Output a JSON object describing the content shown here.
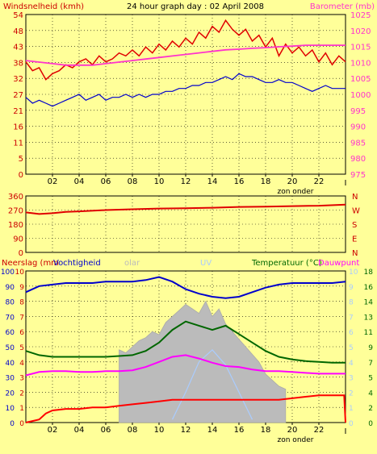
{
  "title": "24 hour graph day : 02 April 2008",
  "colors": {
    "background": "#FFFF99",
    "wind": "#E00000",
    "barometer": "#FF33CC",
    "temperature": "#006600",
    "humidity": "#0000CC",
    "rain": "#FF0000",
    "solar": "#BBBBBB",
    "uv": "#AACCFF",
    "dewpoint": "#FF00FF"
  },
  "chart_data": [
    {
      "type": "line",
      "panel": "wind-barometer",
      "left_label": "Windsnelheid (kmh)",
      "right_label": "Barometer (mb)",
      "x_ticks": [
        "02",
        "04",
        "06",
        "08",
        "10",
        "12",
        "14",
        "16",
        "18",
        "20",
        "22"
      ],
      "x_note": "zon onder",
      "x_end_mark": "I",
      "y_left_ticks": [
        0,
        5,
        11,
        16,
        21,
        27,
        32,
        38,
        43,
        48,
        54
      ],
      "y_left_range": [
        0,
        54
      ],
      "y_right_ticks": [
        975,
        980,
        985,
        990,
        995,
        1000,
        1005,
        1010,
        1015,
        1020,
        1025
      ],
      "y_right_range": [
        975,
        1027
      ],
      "series": [
        {
          "axis": "left",
          "x": [
            0,
            0.5,
            1,
            1.5,
            2,
            2.5,
            3,
            3.5,
            4,
            4.5,
            5,
            5.5,
            6,
            6.5,
            7,
            7.5,
            8,
            8.5,
            9,
            9.5,
            10,
            10.5,
            11,
            11.5,
            12,
            12.5,
            13,
            13.5,
            14,
            14.5,
            15,
            15.5,
            16,
            16.5,
            17,
            17.5,
            18,
            18.5,
            19,
            19.5,
            20,
            20.5,
            21,
            21.5,
            22,
            22.5,
            23,
            23.5,
            24
          ],
          "y": [
            38,
            35,
            36,
            32,
            34,
            35,
            37,
            36,
            38,
            39,
            37,
            40,
            38,
            39,
            41,
            40,
            42,
            40,
            43,
            41,
            44,
            42,
            45,
            43,
            46,
            44,
            48,
            46,
            50,
            48,
            52,
            49,
            47,
            49,
            45,
            47,
            43,
            46,
            40,
            44,
            41,
            43,
            40,
            42,
            38,
            41,
            37,
            40,
            38
          ]
        },
        {
          "axis": "left",
          "x": [
            0,
            0.5,
            1,
            1.5,
            2,
            2.5,
            3,
            3.5,
            4,
            4.5,
            5,
            5.5,
            6,
            6.5,
            7,
            7.5,
            8,
            8.5,
            9,
            9.5,
            10,
            10.5,
            11,
            11.5,
            12,
            12.5,
            13,
            13.5,
            14,
            14.5,
            15,
            15.5,
            16,
            16.5,
            17,
            17.5,
            18,
            18.5,
            19,
            19.5,
            20,
            20.5,
            21,
            21.5,
            22,
            22.5,
            23,
            23.5,
            24
          ],
          "y": [
            26,
            24,
            25,
            24,
            23,
            24,
            25,
            26,
            27,
            25,
            26,
            27,
            25,
            26,
            26,
            27,
            26,
            27,
            26,
            27,
            27,
            28,
            28,
            29,
            29,
            30,
            30,
            31,
            31,
            32,
            33,
            32,
            34,
            33,
            33,
            32,
            31,
            31,
            32,
            31,
            31,
            30,
            29,
            28,
            29,
            30,
            29,
            29,
            29
          ]
        },
        {
          "axis": "right",
          "x": [
            0,
            1,
            2,
            3,
            4,
            5,
            6,
            7,
            8,
            9,
            10,
            11,
            12,
            13,
            14,
            15,
            16,
            17,
            18,
            19,
            20,
            21,
            22,
            23,
            24
          ],
          "y": [
            1012,
            1011.5,
            1011,
            1010.5,
            1010.5,
            1010.5,
            1011,
            1011.5,
            1012,
            1012.5,
            1013,
            1013.5,
            1014,
            1014.5,
            1015,
            1015.5,
            1015.7,
            1016,
            1016.2,
            1016.5,
            1016.7,
            1017,
            1017,
            1017,
            1017
          ]
        }
      ]
    },
    {
      "type": "line",
      "panel": "wind-direction",
      "y_left_ticks": [
        0,
        90,
        180,
        270,
        360
      ],
      "y_left_range": [
        0,
        360
      ],
      "right_labels": [
        "N",
        "W",
        "S",
        "E",
        "N"
      ],
      "series": [
        {
          "axis": "left",
          "x": [
            0,
            1,
            2,
            3,
            4,
            6,
            8,
            10,
            12,
            14,
            16,
            18,
            20,
            22,
            24
          ],
          "y": [
            255,
            245,
            250,
            258,
            262,
            270,
            275,
            280,
            282,
            285,
            290,
            292,
            295,
            298,
            305
          ]
        }
      ]
    },
    {
      "type": "line",
      "panel": "rain-humidity-temp",
      "labels": {
        "rain": "Neerslag (mm",
        "humidity": "Vochtigheid",
        "solar": "olar",
        "uv": "UV",
        "temperature": "Temperatuur (°C)",
        "dewpoint": "Dauwpunt"
      },
      "x_ticks": [
        "02",
        "04",
        "06",
        "08",
        "10",
        "12",
        "14",
        "16",
        "18",
        "20",
        "22"
      ],
      "x_note": "zon onder",
      "x_end_mark": "I",
      "y_left_ticks": [
        0,
        10,
        20,
        30,
        40,
        50,
        60,
        70,
        80,
        90,
        100
      ],
      "y_left_range": [
        0,
        100
      ],
      "y_rain_ticks": [
        0,
        1,
        2,
        3,
        4,
        5,
        6,
        7,
        8,
        9,
        10
      ],
      "y_rain_range": [
        0,
        10
      ],
      "y_right_ticks": [
        0,
        2,
        4,
        5,
        7,
        9,
        11,
        13,
        14,
        16,
        18
      ],
      "y_right_range": [
        0,
        18
      ],
      "y_uv_ticks": [
        0,
        1,
        2,
        3,
        4,
        5,
        6,
        7,
        8,
        9,
        10
      ],
      "series": [
        {
          "axis": "left",
          "x": [
            0,
            1,
            2,
            3,
            4,
            5,
            6,
            7,
            8,
            9,
            10,
            11,
            12,
            13,
            14,
            15,
            16,
            17,
            18,
            19,
            20,
            21,
            22,
            23,
            24
          ],
          "y": [
            86,
            90,
            91,
            92,
            92,
            92,
            93,
            93,
            93,
            94,
            96,
            93,
            88,
            85,
            83,
            82,
            83,
            86,
            89,
            91,
            92,
            92,
            92,
            92,
            93
          ]
        },
        {
          "axis": "right",
          "x": [
            0,
            1,
            2,
            3,
            4,
            5,
            6,
            7,
            8,
            9,
            10,
            11,
            12,
            13,
            14,
            15,
            16,
            17,
            18,
            19,
            20,
            21,
            22,
            23,
            24
          ],
          "y": [
            8.5,
            8,
            7.8,
            7.8,
            7.8,
            7.8,
            7.8,
            7.9,
            8,
            8.5,
            9.5,
            11,
            12,
            11.5,
            11,
            11.5,
            10.5,
            9.5,
            8.5,
            7.8,
            7.5,
            7.3,
            7.2,
            7.1,
            7.1
          ]
        },
        {
          "axis": "right",
          "x": [
            0,
            1,
            2,
            3,
            4,
            5,
            6,
            7,
            8,
            9,
            10,
            11,
            12,
            13,
            14,
            15,
            16,
            17,
            18,
            19,
            20,
            21,
            22,
            23,
            24
          ],
          "y": [
            5.6,
            6,
            6.1,
            6.1,
            6,
            6,
            6.1,
            6.1,
            6.2,
            6.6,
            7.2,
            7.8,
            8,
            7.6,
            7.1,
            6.7,
            6.6,
            6.3,
            6.1,
            6.1,
            6,
            5.9,
            5.8,
            5.8,
            5.8
          ]
        },
        {
          "axis": "left",
          "x": [
            0,
            0.5,
            1,
            1.5,
            2,
            3,
            4,
            5,
            6,
            7,
            8,
            9,
            10,
            11,
            12,
            13,
            14,
            15,
            16,
            17,
            18,
            19,
            20,
            21,
            22,
            23,
            23.9,
            24
          ],
          "y": [
            0,
            1,
            2,
            6,
            8,
            9,
            9,
            10,
            10,
            11,
            12,
            13,
            14,
            15,
            15,
            15,
            15,
            15,
            15,
            15,
            15,
            15,
            16,
            17,
            18,
            18,
            18,
            0
          ]
        },
        {
          "axis": "left",
          "x": [
            7,
            7.5,
            8,
            8.5,
            9,
            9.5,
            10,
            10.5,
            11,
            11.5,
            12,
            12.5,
            13,
            13.5,
            14,
            14.5,
            15,
            15.5,
            16,
            16.5,
            17,
            17.5,
            18,
            18.5,
            19,
            19.5
          ],
          "y": [
            48,
            46,
            50,
            54,
            56,
            60,
            58,
            66,
            70,
            74,
            78,
            75,
            72,
            80,
            70,
            75,
            65,
            60,
            55,
            50,
            45,
            40,
            32,
            28,
            24,
            22
          ]
        },
        {
          "axis": "left",
          "x": [
            11,
            12,
            13,
            14,
            15,
            16,
            17
          ],
          "y": [
            2,
            20,
            40,
            48,
            38,
            20,
            2
          ]
        }
      ]
    }
  ]
}
